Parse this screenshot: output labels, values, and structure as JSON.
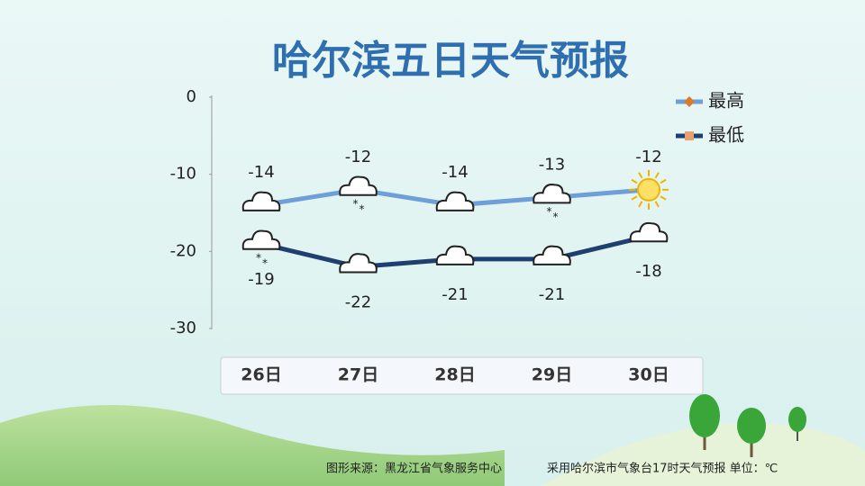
{
  "chart_data": {
    "type": "line",
    "title": "哈尔滨五日天气预报",
    "categories": [
      "26日",
      "27日",
      "28日",
      "29日",
      "30日"
    ],
    "series": [
      {
        "name": "最高",
        "color": "#6f9fd8",
        "values": [
          -14,
          -12,
          -14,
          -13,
          -12
        ]
      },
      {
        "name": "最低",
        "color": "#1f3f70",
        "values": [
          -19,
          -22,
          -21,
          -21,
          -18
        ]
      }
    ],
    "ylim": [
      -30,
      0
    ],
    "yticks": [
      0,
      -10,
      -20,
      -30
    ],
    "grid": false,
    "footer": [
      "图形来源：黑龙江省气象服务中心",
      "采用哈尔滨市气象台17时天气预报 单位：℃"
    ]
  }
}
